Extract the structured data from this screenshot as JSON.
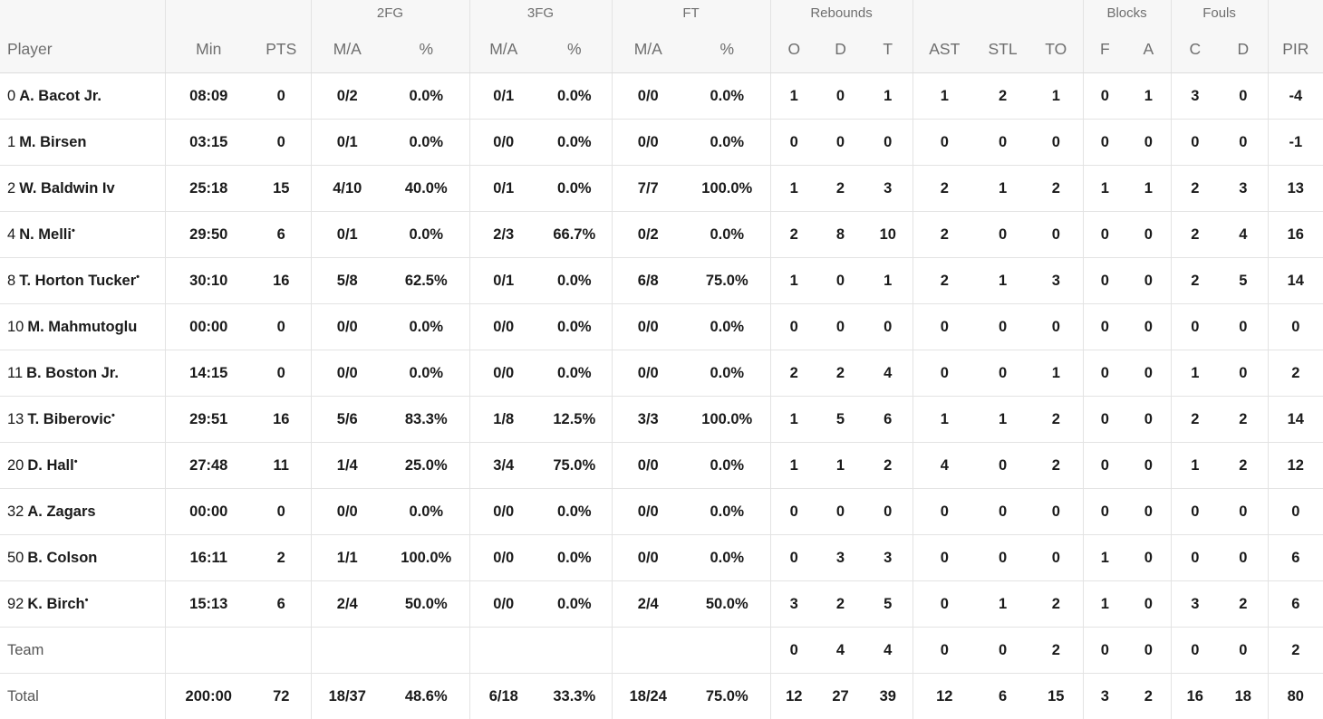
{
  "groups": {
    "twofg": "2FG",
    "threefg": "3FG",
    "ft": "FT",
    "reb": "Rebounds",
    "blk": "Blocks",
    "fouls": "Fouls"
  },
  "headers": [
    "Player",
    "Min",
    "PTS",
    "M/A",
    "%",
    "M/A",
    "%",
    "M/A",
    "%",
    "O",
    "D",
    "T",
    "AST",
    "STL",
    "TO",
    "F",
    "A",
    "C",
    "D",
    "PIR"
  ],
  "players": [
    {
      "num": "0",
      "name": "A. Bacot Jr.",
      "starter": false,
      "stats": [
        "08:09",
        "0",
        "0/2",
        "0.0%",
        "0/1",
        "0.0%",
        "0/0",
        "0.0%",
        "1",
        "0",
        "1",
        "1",
        "2",
        "1",
        "0",
        "1",
        "3",
        "0",
        "-4"
      ]
    },
    {
      "num": "1",
      "name": "M. Birsen",
      "starter": false,
      "stats": [
        "03:15",
        "0",
        "0/1",
        "0.0%",
        "0/0",
        "0.0%",
        "0/0",
        "0.0%",
        "0",
        "0",
        "0",
        "0",
        "0",
        "0",
        "0",
        "0",
        "0",
        "0",
        "-1"
      ]
    },
    {
      "num": "2",
      "name": "W. Baldwin Iv",
      "starter": false,
      "stats": [
        "25:18",
        "15",
        "4/10",
        "40.0%",
        "0/1",
        "0.0%",
        "7/7",
        "100.0%",
        "1",
        "2",
        "3",
        "2",
        "1",
        "2",
        "1",
        "1",
        "2",
        "3",
        "13"
      ]
    },
    {
      "num": "4",
      "name": "N. Melli",
      "starter": true,
      "stats": [
        "29:50",
        "6",
        "0/1",
        "0.0%",
        "2/3",
        "66.7%",
        "0/2",
        "0.0%",
        "2",
        "8",
        "10",
        "2",
        "0",
        "0",
        "0",
        "0",
        "2",
        "4",
        "16"
      ]
    },
    {
      "num": "8",
      "name": "T. Horton Tucker",
      "starter": true,
      "stats": [
        "30:10",
        "16",
        "5/8",
        "62.5%",
        "0/1",
        "0.0%",
        "6/8",
        "75.0%",
        "1",
        "0",
        "1",
        "2",
        "1",
        "3",
        "0",
        "0",
        "2",
        "5",
        "14"
      ]
    },
    {
      "num": "10",
      "name": "M. Mahmutoglu",
      "starter": false,
      "stats": [
        "00:00",
        "0",
        "0/0",
        "0.0%",
        "0/0",
        "0.0%",
        "0/0",
        "0.0%",
        "0",
        "0",
        "0",
        "0",
        "0",
        "0",
        "0",
        "0",
        "0",
        "0",
        "0"
      ]
    },
    {
      "num": "11",
      "name": "B. Boston Jr.",
      "starter": false,
      "stats": [
        "14:15",
        "0",
        "0/0",
        "0.0%",
        "0/0",
        "0.0%",
        "0/0",
        "0.0%",
        "2",
        "2",
        "4",
        "0",
        "0",
        "1",
        "0",
        "0",
        "1",
        "0",
        "2"
      ]
    },
    {
      "num": "13",
      "name": "T. Biberovic",
      "starter": true,
      "stats": [
        "29:51",
        "16",
        "5/6",
        "83.3%",
        "1/8",
        "12.5%",
        "3/3",
        "100.0%",
        "1",
        "5",
        "6",
        "1",
        "1",
        "2",
        "0",
        "0",
        "2",
        "2",
        "14"
      ]
    },
    {
      "num": "20",
      "name": "D. Hall",
      "starter": true,
      "stats": [
        "27:48",
        "11",
        "1/4",
        "25.0%",
        "3/4",
        "75.0%",
        "0/0",
        "0.0%",
        "1",
        "1",
        "2",
        "4",
        "0",
        "2",
        "0",
        "0",
        "1",
        "2",
        "12"
      ]
    },
    {
      "num": "32",
      "name": "A. Zagars",
      "starter": false,
      "stats": [
        "00:00",
        "0",
        "0/0",
        "0.0%",
        "0/0",
        "0.0%",
        "0/0",
        "0.0%",
        "0",
        "0",
        "0",
        "0",
        "0",
        "0",
        "0",
        "0",
        "0",
        "0",
        "0"
      ]
    },
    {
      "num": "50",
      "name": "B. Colson",
      "starter": false,
      "stats": [
        "16:11",
        "2",
        "1/1",
        "100.0%",
        "0/0",
        "0.0%",
        "0/0",
        "0.0%",
        "0",
        "3",
        "3",
        "0",
        "0",
        "0",
        "1",
        "0",
        "0",
        "0",
        "6"
      ]
    },
    {
      "num": "92",
      "name": "K. Birch",
      "starter": true,
      "stats": [
        "15:13",
        "6",
        "2/4",
        "50.0%",
        "0/0",
        "0.0%",
        "2/4",
        "50.0%",
        "3",
        "2",
        "5",
        "0",
        "1",
        "2",
        "1",
        "0",
        "3",
        "2",
        "6"
      ]
    }
  ],
  "team": {
    "label": "Team",
    "stats": [
      "",
      "",
      "",
      "",
      "",
      "",
      "",
      "",
      "0",
      "4",
      "4",
      "0",
      "0",
      "2",
      "0",
      "0",
      "0",
      "0",
      "2"
    ]
  },
  "total": {
    "label": "Total",
    "stats": [
      "200:00",
      "72",
      "18/37",
      "48.6%",
      "6/18",
      "33.3%",
      "18/24",
      "75.0%",
      "12",
      "27",
      "39",
      "12",
      "6",
      "15",
      "3",
      "2",
      "16",
      "18",
      "80"
    ]
  },
  "starter_mark": "•"
}
